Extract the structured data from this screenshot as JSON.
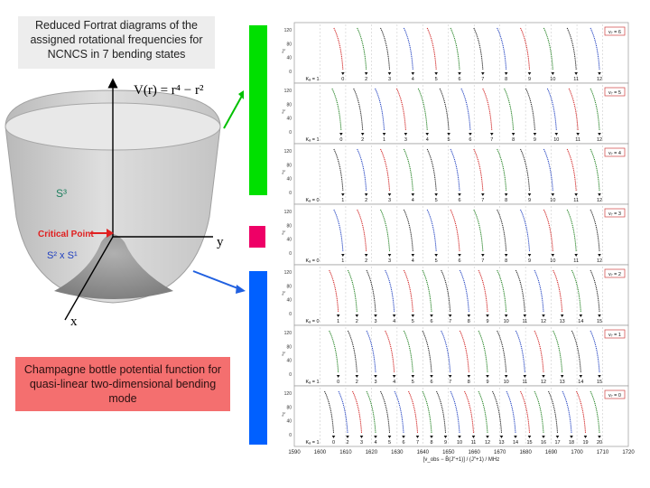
{
  "captions": {
    "top": "Reduced Fortrat diagrams of the assigned rotational frequencies for NCNCS in 7 bending states",
    "bottom": "Champagne bottle potential function for quasi-linear two-dimensional bending mode"
  },
  "potential_figure": {
    "formula": "V(r) = r⁴ − r²",
    "axis_y": "y",
    "axis_x": "x",
    "label_s3": "S³",
    "label_critical": "Critical Point",
    "label_s2s1": "S² x S¹"
  },
  "colors": {
    "green_bar": "#00e000",
    "red_bar": "#ee0066",
    "blue_bar": "#0060ff",
    "caption_top_bg": "#ededed",
    "caption_bottom_bg": "#f46f6f"
  },
  "fortrat": {
    "y_ticks": [
      "120",
      "80",
      "40",
      "0"
    ],
    "j_axis_label": "J″",
    "x_axis_label": "[ν_obs − B̄(J″+1)] / (J″+1) / MHz",
    "x_ticks": [
      "1590",
      "1600",
      "1610",
      "1620",
      "1630",
      "1640",
      "1650",
      "1660",
      "1670",
      "1680",
      "1690",
      "1700",
      "1710",
      "1720"
    ],
    "panels": [
      {
        "state": "v₇ = 6",
        "ka_prefix": "Kₐ = 1",
        "ka": [
          "0",
          "2",
          "3",
          "4",
          "5",
          "6",
          "7",
          "8",
          "9",
          "10",
          "11",
          "12"
        ]
      },
      {
        "state": "v₇ = 5",
        "ka_prefix": "Kₐ = 1",
        "ka": [
          "0",
          "2",
          "1",
          "3",
          "4",
          "5",
          "6",
          "7",
          "8",
          "9",
          "10",
          "11",
          "12"
        ]
      },
      {
        "state": "v₇ = 4",
        "ka_prefix": "Kₐ = 0",
        "ka": [
          "1",
          "2",
          "3",
          "4",
          "5",
          "6",
          "7",
          "8",
          "9",
          "10",
          "11",
          "12"
        ]
      },
      {
        "state": "v₇ = 3",
        "ka_prefix": "Kₐ = 0",
        "ka": [
          "1",
          "2",
          "3",
          "4",
          "5",
          "6",
          "7",
          "8",
          "9",
          "10",
          "11",
          "12"
        ]
      },
      {
        "state": "v₇ = 2",
        "ka_prefix": "Kₐ = 0",
        "ka": [
          "1",
          "2",
          "3",
          "4",
          "5",
          "6",
          "7",
          "8",
          "9",
          "10",
          "11",
          "12",
          "13",
          "14",
          "15"
        ]
      },
      {
        "state": "v₇ = 1",
        "ka_prefix": "Kₐ = 1",
        "ka": [
          "0",
          "2",
          "3",
          "4",
          "5",
          "6",
          "7",
          "8",
          "9",
          "10",
          "11",
          "12",
          "13",
          "14",
          "15"
        ]
      },
      {
        "state": "v₇ = 0",
        "ka_prefix": "Kₐ = 1",
        "ka": [
          "0",
          "2",
          "3",
          "4",
          "5",
          "6",
          "7",
          "8",
          "9",
          "10",
          "11",
          "12",
          "13",
          "14",
          "15",
          "16",
          "17",
          "18",
          "19",
          "20"
        ]
      }
    ]
  }
}
